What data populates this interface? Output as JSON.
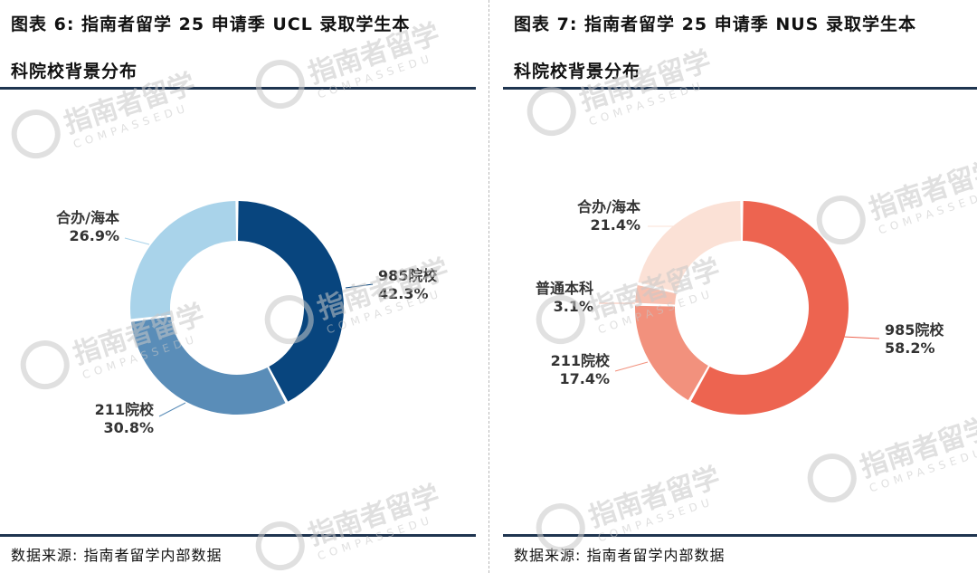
{
  "chart_data": [
    {
      "type": "pie",
      "variant": "donut",
      "title_line1": "图表 6: 指南者留学 25 申请季 UCL 录取学生本",
      "title_line2": "科院校背景分布",
      "source": "数据来源: 指南者留学内部数据",
      "slices": [
        {
          "label": "985院校",
          "value": 42.3,
          "value_label": "42.3%",
          "color": "#08457e"
        },
        {
          "label": "211院校",
          "value": 30.8,
          "value_label": "30.8%",
          "color": "#5a8db8"
        },
        {
          "label": "合办/海本",
          "value": 26.9,
          "value_label": "26.9%",
          "color": "#a9d3ea"
        }
      ]
    },
    {
      "type": "pie",
      "variant": "donut",
      "title_line1": "图表 7: 指南者留学 25 申请季 NUS 录取学生本",
      "title_line2": "科院校背景分布",
      "source": "数据来源: 指南者留学内部数据",
      "slices": [
        {
          "label": "985院校",
          "value": 58.2,
          "value_label": "58.2%",
          "color": "#ed6450"
        },
        {
          "label": "211院校",
          "value": 17.4,
          "value_label": "17.4%",
          "color": "#f2917d"
        },
        {
          "label": "普通本科",
          "value": 3.1,
          "value_label": "3.1%",
          "color": "#f7c1b1"
        },
        {
          "label": "合办/海本",
          "value": 21.4,
          "value_label": "21.4%",
          "color": "#fbe1d6"
        }
      ]
    }
  ],
  "watermark": {
    "text": "指南者留学",
    "sub": "COMPASSEDU",
    "color": "#c8c8c8"
  }
}
